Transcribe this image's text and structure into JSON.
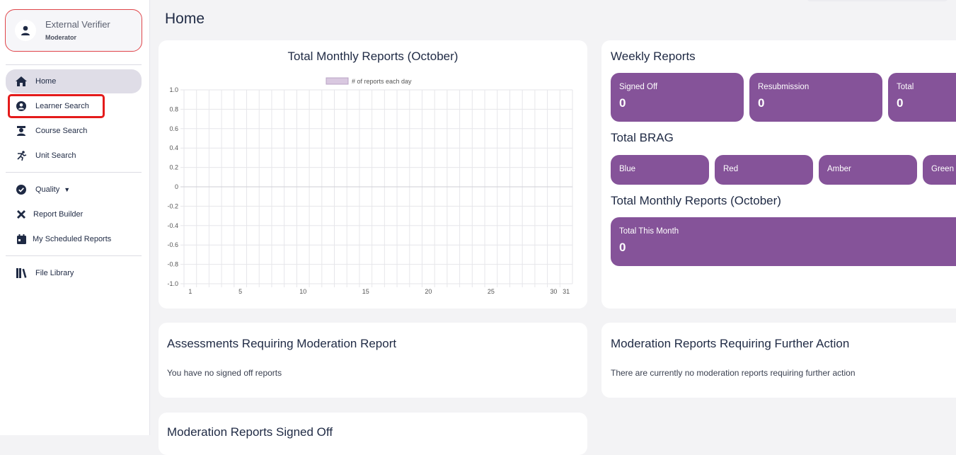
{
  "user": {
    "name": "External Verifier",
    "role": "Moderator"
  },
  "nav": {
    "home": "Home",
    "learner_search": "Learner Search",
    "course_search": "Course Search",
    "unit_search": "Unit Search",
    "quality": "Quality",
    "report_builder": "Report Builder",
    "scheduled_reports": "My Scheduled Reports",
    "file_library": "File Library"
  },
  "page": {
    "title": "Home"
  },
  "chart_card": {
    "title": "Total Monthly Reports (October)"
  },
  "chart_data": {
    "type": "bar",
    "title": "Total Monthly Reports (October)",
    "legend": [
      "# of reports each day"
    ],
    "legend_position": "top-center",
    "x_ticks": [
      "1",
      "5",
      "10",
      "15",
      "20",
      "25",
      "30",
      "31"
    ],
    "x_range": [
      1,
      31
    ],
    "ylim": [
      -1.0,
      1.0
    ],
    "y_ticks": [
      "1.0",
      "0.8",
      "0.6",
      "0.4",
      "0.2",
      "0",
      "-0.2",
      "-0.4",
      "-0.6",
      "-0.8",
      "-1.0"
    ],
    "grid": true,
    "series": [
      {
        "name": "# of reports each day",
        "color": "#d9c8e0",
        "values": [
          0,
          0,
          0,
          0,
          0,
          0,
          0,
          0,
          0,
          0,
          0,
          0,
          0,
          0,
          0,
          0,
          0,
          0,
          0,
          0,
          0,
          0,
          0,
          0,
          0,
          0,
          0,
          0,
          0,
          0,
          0
        ]
      }
    ]
  },
  "weekly": {
    "title": "Weekly Reports",
    "tiles": [
      {
        "label": "Signed Off",
        "value": "0"
      },
      {
        "label": "Resubmission",
        "value": "0"
      },
      {
        "label": "Total",
        "value": "0"
      }
    ]
  },
  "brag": {
    "title": "Total BRAG",
    "tiles": [
      "Blue",
      "Red",
      "Amber",
      "Green"
    ]
  },
  "monthly": {
    "title": "Total Monthly Reports (October)",
    "tile_label": "Total This Month",
    "tile_value": "0"
  },
  "assessments": {
    "title": "Assessments Requiring Moderation Report",
    "text": "You have no signed off reports"
  },
  "further_action": {
    "title": "Moderation Reports Requiring Further Action",
    "text": "There are currently no moderation reports requiring further action"
  },
  "signed_off": {
    "title": "Moderation Reports Signed Off"
  },
  "colors": {
    "accent": "#855399",
    "highlight": "#e41b1b",
    "text": "#1f2a44"
  }
}
